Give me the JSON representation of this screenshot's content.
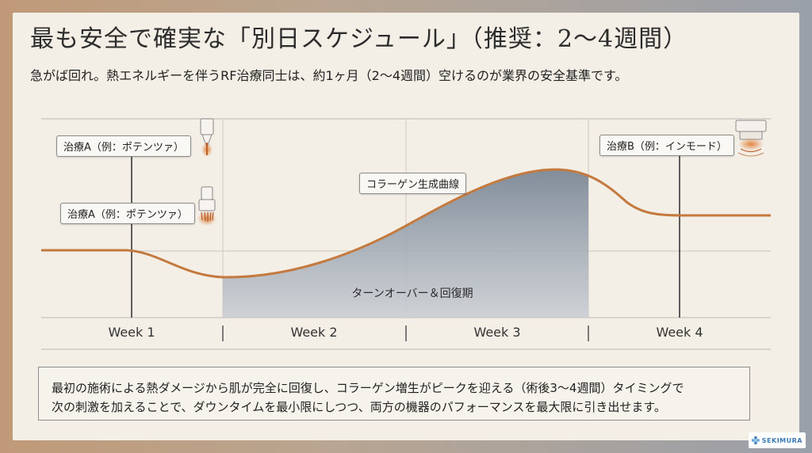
{
  "title": "最も安全で確実な「別日スケジュール」（推奨：2〜4週間）",
  "subtitle": "急がば回れ。熱エネルギーを伴うRF治療同士は、約1ヶ月（2〜4週間）空けるのが業界の安全基準です。",
  "diagram": {
    "labels": {
      "treatment_a_1": "治療A（例：ポテンツァ）",
      "treatment_a_2": "治療A（例：ポテンツァ）",
      "treatment_b": "治療B（例：インモード）",
      "collagen_curve": "コラーゲン生成曲線",
      "recovery_period": "ターンオーバー＆回復期"
    },
    "weeks": [
      "Week 1",
      "Week 2",
      "Week 3",
      "Week 4"
    ],
    "colors": {
      "curve": "#c47a3e",
      "fill": "#8893a0",
      "grid": "#9a9a9a"
    },
    "icons": [
      "needle-device-icon",
      "microneedle-device-icon",
      "rf-device-icon"
    ]
  },
  "note": {
    "line1": "最初の施術による熱ダメージから肌が完全に回復し、コラーゲン増生がピークを迎える（術後3〜4週間）タイミングで",
    "line2": "次の刺激を加えることで、ダウンタイムを最小限にしつつ、両方の機器のパフォーマンスを最大限に引き出せます。"
  },
  "logo": {
    "text": "SEKIMURA"
  }
}
